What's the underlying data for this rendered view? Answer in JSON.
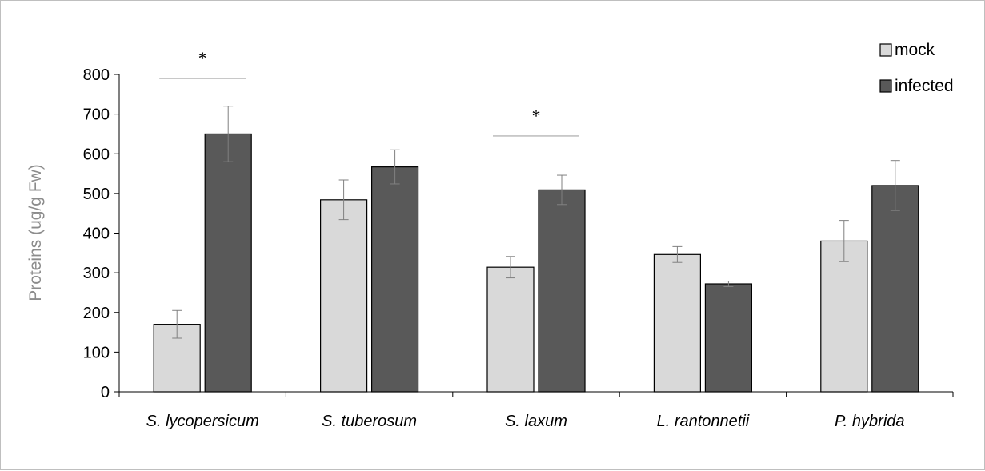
{
  "chart_data": {
    "type": "bar",
    "title": "",
    "xlabel": "",
    "ylabel": "Proteins (ug/g Fw)",
    "ylim": [
      0,
      800
    ],
    "yticks": [
      0,
      100,
      200,
      300,
      400,
      500,
      600,
      700,
      800
    ],
    "grid": false,
    "legend_position": "top-right",
    "categories": [
      "S. lycopersicum",
      "S. tuberosum",
      "S. laxum",
      "L. rantonnetii",
      "P. hybrida"
    ],
    "series": [
      {
        "name": "mock",
        "color": "#d9d9d9",
        "values": [
          170,
          484,
          314,
          346,
          380
        ],
        "errors": [
          35,
          50,
          27,
          20,
          52
        ]
      },
      {
        "name": "infected",
        "color": "#595959",
        "values": [
          650,
          567,
          509,
          272,
          520
        ],
        "errors": [
          70,
          43,
          37,
          7,
          63
        ]
      }
    ],
    "annotations": [
      {
        "category": "S. lycopersicum",
        "label": "*",
        "height": 790
      },
      {
        "category": "S. laxum",
        "label": "*",
        "height": 645
      }
    ]
  }
}
